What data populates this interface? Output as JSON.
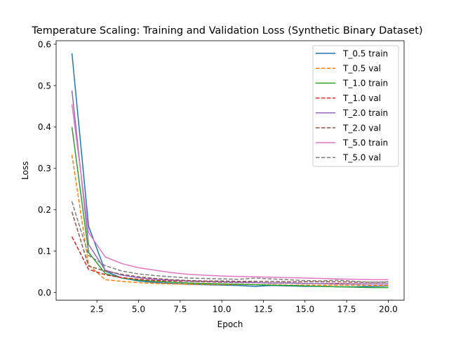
{
  "chart_data": {
    "type": "line",
    "title": "Temperature Scaling: Training and Validation Loss (Synthetic Binary Dataset)",
    "xlabel": "Epoch",
    "ylabel": "Loss",
    "xlim": [
      0.05,
      20.95
    ],
    "ylim": [
      -0.0185,
      0.6085
    ],
    "xticks": [
      2.5,
      5.0,
      7.5,
      10.0,
      12.5,
      15.0,
      17.5,
      20.0
    ],
    "xtick_labels": [
      "2.5",
      "5.0",
      "7.5",
      "10.0",
      "12.5",
      "15.0",
      "17.5",
      "20.0"
    ],
    "yticks": [
      0.0,
      0.1,
      0.2,
      0.3,
      0.4,
      0.5,
      0.6
    ],
    "ytick_labels": [
      "0.0",
      "0.1",
      "0.2",
      "0.3",
      "0.4",
      "0.5",
      "0.6"
    ],
    "grid": false,
    "legend_position": "upper-right",
    "x": [
      1,
      2,
      3,
      4,
      5,
      6,
      7,
      8,
      9,
      10,
      11,
      12,
      13,
      14,
      15,
      16,
      17,
      18,
      19,
      20
    ],
    "series": [
      {
        "name": "T_0.5 train",
        "color": "#1f77b4",
        "dash": "solid",
        "values": [
          0.578,
          0.16,
          0.052,
          0.035,
          0.028,
          0.024,
          0.022,
          0.02,
          0.019,
          0.018,
          0.017,
          0.015,
          0.017,
          0.016,
          0.015,
          0.015,
          0.014,
          0.014,
          0.015,
          0.016
        ]
      },
      {
        "name": "T_0.5 val",
        "color": "#ff7f0e",
        "dash": "dashed",
        "values": [
          0.333,
          0.067,
          0.031,
          0.027,
          0.024,
          0.022,
          0.021,
          0.02,
          0.02,
          0.019,
          0.019,
          0.019,
          0.019,
          0.018,
          0.018,
          0.018,
          0.018,
          0.018,
          0.017,
          0.017
        ]
      },
      {
        "name": "T_1.0 train",
        "color": "#2ca02c",
        "dash": "solid",
        "values": [
          0.4,
          0.097,
          0.046,
          0.035,
          0.03,
          0.027,
          0.025,
          0.023,
          0.022,
          0.021,
          0.02,
          0.019,
          0.018,
          0.017,
          0.016,
          0.015,
          0.014,
          0.013,
          0.012,
          0.012
        ]
      },
      {
        "name": "T_1.0 val",
        "color": "#d62728",
        "dash": "dashed",
        "values": [
          0.135,
          0.056,
          0.043,
          0.036,
          0.032,
          0.029,
          0.028,
          0.027,
          0.026,
          0.025,
          0.024,
          0.024,
          0.023,
          0.023,
          0.022,
          0.022,
          0.022,
          0.021,
          0.021,
          0.021
        ]
      },
      {
        "name": "T_2.0 train",
        "color": "#9467bd",
        "dash": "solid",
        "values": [
          0.488,
          0.116,
          0.054,
          0.042,
          0.036,
          0.032,
          0.03,
          0.028,
          0.027,
          0.026,
          0.025,
          0.024,
          0.023,
          0.023,
          0.022,
          0.022,
          0.021,
          0.021,
          0.021,
          0.021
        ]
      },
      {
        "name": "T_2.0 val",
        "color": "#8c564b",
        "dash": "dashed",
        "values": [
          0.195,
          0.064,
          0.052,
          0.044,
          0.038,
          0.034,
          0.031,
          0.029,
          0.028,
          0.028,
          0.027,
          0.027,
          0.027,
          0.026,
          0.026,
          0.026,
          0.026,
          0.025,
          0.025,
          0.025
        ]
      },
      {
        "name": "T_5.0 train",
        "color": "#e377c2",
        "dash": "solid",
        "values": [
          0.455,
          0.145,
          0.086,
          0.07,
          0.06,
          0.054,
          0.048,
          0.044,
          0.042,
          0.04,
          0.039,
          0.038,
          0.037,
          0.036,
          0.035,
          0.034,
          0.033,
          0.032,
          0.031,
          0.031
        ]
      },
      {
        "name": "T_5.0 val",
        "color": "#7f7f7f",
        "dash": "dashed",
        "values": [
          0.22,
          0.09,
          0.065,
          0.052,
          0.045,
          0.041,
          0.038,
          0.035,
          0.034,
          0.033,
          0.032,
          0.035,
          0.033,
          0.031,
          0.029,
          0.028,
          0.03,
          0.027,
          0.025,
          0.026
        ]
      }
    ]
  }
}
